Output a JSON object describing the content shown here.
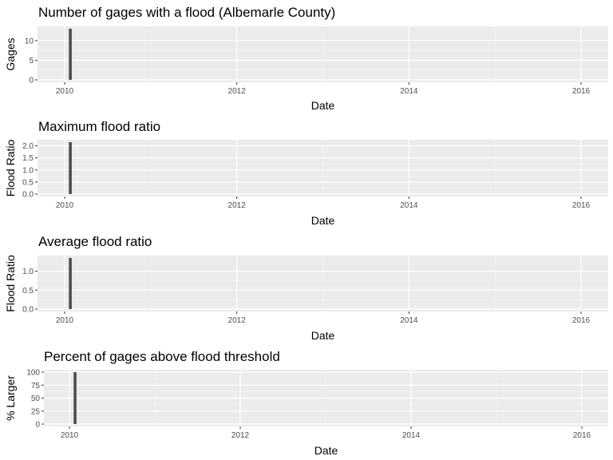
{
  "chart_data": [
    {
      "type": "bar",
      "title": "Number of gages with a flood (Albemarle County)",
      "xlabel": "Date",
      "ylabel": "Gages",
      "x_ticks": [
        "2010",
        "2012",
        "2014",
        "2016"
      ],
      "y_ticks": [
        "0",
        "5",
        "10"
      ],
      "ylim": [
        0,
        13
      ],
      "grid": true,
      "points": [
        {
          "x": "2010-01-25",
          "y": 13
        }
      ]
    },
    {
      "type": "bar",
      "title": "Maximum flood ratio",
      "xlabel": "Date",
      "ylabel": "Flood Ratio",
      "x_ticks": [
        "2010",
        "2012",
        "2014",
        "2016"
      ],
      "y_ticks": [
        "0.0",
        "0.5",
        "1.0",
        "1.5",
        "2.0"
      ],
      "ylim": [
        0,
        2.15
      ],
      "grid": true,
      "points": [
        {
          "x": "2010-01-25",
          "y": 2.15
        }
      ]
    },
    {
      "type": "bar",
      "title": "Average flood ratio",
      "xlabel": "Date",
      "ylabel": "Flood Ratio",
      "x_ticks": [
        "2010",
        "2012",
        "2014",
        "2016"
      ],
      "y_ticks": [
        "0.0",
        "0.5",
        "1.0"
      ],
      "ylim": [
        0,
        1.35
      ],
      "grid": true,
      "points": [
        {
          "x": "2010-01-25",
          "y": 1.35
        }
      ]
    },
    {
      "type": "bar",
      "title": "Percent of gages above flood threshold",
      "xlabel": "Date",
      "ylabel": "% Larger",
      "x_ticks": [
        "2010",
        "2012",
        "2014",
        "2016"
      ],
      "y_ticks": [
        "0",
        "25",
        "50",
        "75",
        "100"
      ],
      "ylim": [
        0,
        100
      ],
      "grid": true,
      "points": [
        {
          "x": "2010-01-25",
          "y": 100
        }
      ]
    }
  ]
}
